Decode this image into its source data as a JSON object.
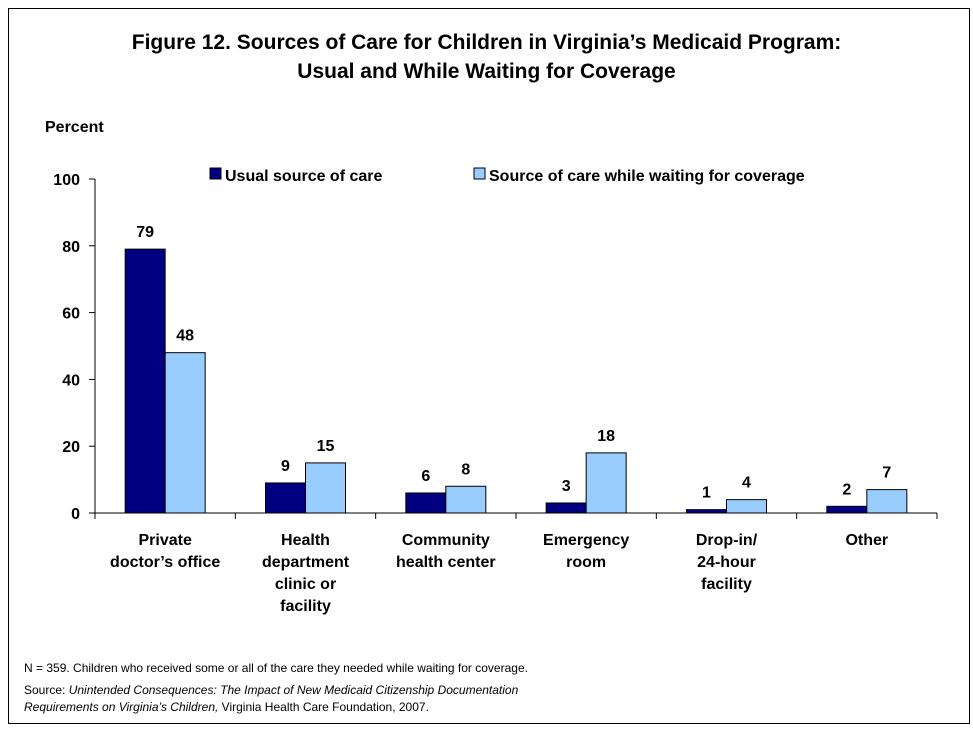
{
  "title_line1": "Figure 12. Sources of Care for Children in Virginia’s Medicaid Program:",
  "title_line2": "Usual and While Waiting for Coverage",
  "footnote": "N = 359. Children who received some or all of the care they needed while waiting for coverage.",
  "source_prefix": "Source: ",
  "source_italic_1": "Unintended Consequences: The Impact of New Medicaid Citizenship Documentation",
  "source_italic_2": "Requirements on Virginia’s Children,",
  "source_suffix": " Virginia Health Care Foundation, 2007.",
  "colors": {
    "usual": "#000080",
    "waiting": "#99ccff",
    "axis": "#000000"
  },
  "chart_data": {
    "type": "bar",
    "title": "Figure 12. Sources of Care for Children in Virginia’s Medicaid Program: Usual and While Waiting for Coverage",
    "ylabel": "Percent",
    "xlabel": "",
    "ylim": [
      0,
      100
    ],
    "yticks": [
      0,
      20,
      40,
      60,
      80,
      100
    ],
    "grid": false,
    "legend_position": "top",
    "categories": [
      [
        "Private",
        "doctor’s office"
      ],
      [
        "Health",
        "department",
        "clinic or",
        "facility"
      ],
      [
        "Community",
        "health center"
      ],
      [
        "Emergency",
        "room"
      ],
      [
        "Drop-in/",
        "24-hour",
        "facility"
      ],
      [
        "Other"
      ]
    ],
    "series": [
      {
        "name": "Usual source of care",
        "values": [
          79,
          9,
          6,
          3,
          1,
          2
        ]
      },
      {
        "name": "Source of care while waiting for coverage",
        "values": [
          48,
          15,
          8,
          18,
          4,
          7
        ]
      }
    ]
  }
}
